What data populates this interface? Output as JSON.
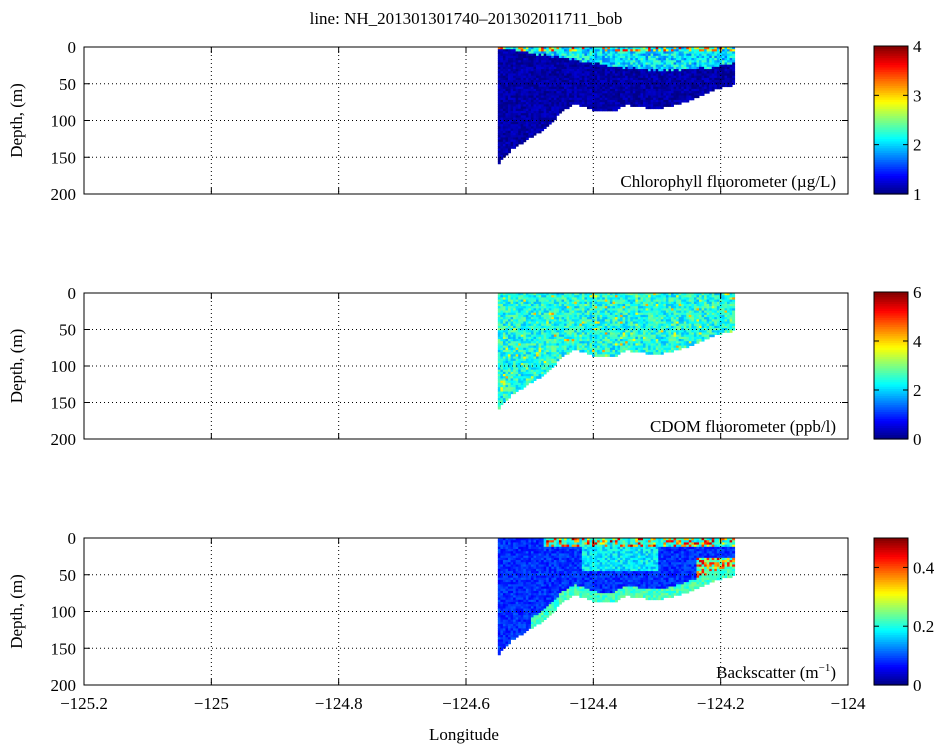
{
  "figure": {
    "title": "line: NH_201301301740–201302011711_bob",
    "xlabel": "Longitude",
    "xlim": [
      -125.2,
      -124.0
    ],
    "x_ticks": [
      -125.2,
      -125.0,
      -124.8,
      -124.6,
      -124.4,
      -124.2,
      -124.0
    ],
    "x_tick_labels": [
      "−125.2",
      "−125",
      "−124.8",
      "−124.6",
      "−124.4",
      "−124.2",
      "−124"
    ]
  },
  "chart_data": [
    {
      "type": "heatmap",
      "id": "chl",
      "ylabel": "Depth, (m)",
      "ylim": [
        0,
        200
      ],
      "y_reversed": true,
      "y_ticks": [
        0,
        50,
        100,
        150,
        200
      ],
      "grid": true,
      "grid_style": "dotted",
      "colormap": "jet",
      "annotation": "Chlorophyll fluorometer (µg/L)",
      "colorbar": {
        "min": 1,
        "max": 4,
        "ticks": [
          1,
          2,
          3,
          4
        ]
      },
      "section_lon_range": [
        -124.55,
        -124.18
      ],
      "bottom_depth_profile": {
        "lon": [
          -124.55,
          -124.545,
          -124.53,
          -124.51,
          -124.49,
          -124.47,
          -124.45,
          -124.43,
          -124.41,
          -124.39,
          -124.37,
          -124.35,
          -124.33,
          -124.31,
          -124.29,
          -124.27,
          -124.25,
          -124.23,
          -124.21,
          -124.19,
          -124.18
        ],
        "depth": [
          157,
          150,
          138,
          127,
          117,
          104,
          85,
          76,
          82,
          87,
          87,
          77,
          80,
          82,
          81,
          77,
          71,
          64,
          57,
          52,
          50
        ]
      },
      "value_structure": {
        "background": 1.0,
        "surface_layer": {
          "value": 2.0,
          "peak": 3.6,
          "bottom_depth_at_lon": {
            "lon": [
              -124.55,
              -124.5,
              -124.44,
              -124.38,
              -124.3,
              -124.22,
              -124.18
            ],
            "depth": [
              0,
              6,
              14,
              24,
              30,
              26,
              20
            ]
          }
        }
      }
    },
    {
      "type": "heatmap",
      "id": "cdom",
      "ylabel": "Depth, (m)",
      "ylim": [
        0,
        200
      ],
      "y_reversed": true,
      "y_ticks": [
        0,
        50,
        100,
        150,
        200
      ],
      "grid": true,
      "grid_style": "dotted",
      "colormap": "jet",
      "annotation": "CDOM fluorometer (ppb/l)",
      "colorbar": {
        "min": 0,
        "max": 6,
        "ticks": [
          0,
          2,
          4,
          6
        ]
      },
      "section_lon_range": [
        -124.55,
        -124.18
      ],
      "bottom_depth_profile": {
        "lon": [
          -124.55,
          -124.545,
          -124.53,
          -124.51,
          -124.49,
          -124.47,
          -124.45,
          -124.43,
          -124.41,
          -124.39,
          -124.37,
          -124.35,
          -124.33,
          -124.31,
          -124.29,
          -124.27,
          -124.25,
          -124.23,
          -124.21,
          -124.19,
          -124.18
        ],
        "depth": [
          157,
          150,
          138,
          127,
          117,
          104,
          85,
          76,
          82,
          87,
          87,
          77,
          80,
          82,
          81,
          77,
          71,
          64,
          57,
          52,
          50
        ]
      },
      "value_structure": {
        "background": 2.4,
        "variation": 0.6
      }
    },
    {
      "type": "heatmap",
      "id": "bbp",
      "ylabel": "Depth, (m)",
      "ylim": [
        0,
        200
      ],
      "y_reversed": true,
      "y_ticks": [
        0,
        50,
        100,
        150,
        200
      ],
      "grid": true,
      "grid_style": "dotted",
      "colormap": "jet",
      "annotation": "Backscatter (m",
      "annotation_superscript": "−1",
      "annotation_suffix": ")",
      "colorbar": {
        "min": 0,
        "max": 0.5,
        "ticks": [
          0,
          0.2,
          0.4
        ]
      },
      "section_lon_range": [
        -124.55,
        -124.18
      ],
      "bottom_depth_profile": {
        "lon": [
          -124.55,
          -124.545,
          -124.53,
          -124.51,
          -124.49,
          -124.47,
          -124.45,
          -124.43,
          -124.41,
          -124.39,
          -124.37,
          -124.35,
          -124.33,
          -124.31,
          -124.29,
          -124.27,
          -124.25,
          -124.23,
          -124.21,
          -124.19,
          -124.18
        ],
        "depth": [
          157,
          150,
          138,
          127,
          117,
          104,
          85,
          76,
          82,
          87,
          87,
          77,
          80,
          82,
          81,
          77,
          71,
          64,
          57,
          52,
          50
        ]
      },
      "value_structure": {
        "background": 0.06,
        "surface_value": 0.2,
        "bottom_layer_value": 0.22,
        "peak": 0.45
      }
    }
  ]
}
